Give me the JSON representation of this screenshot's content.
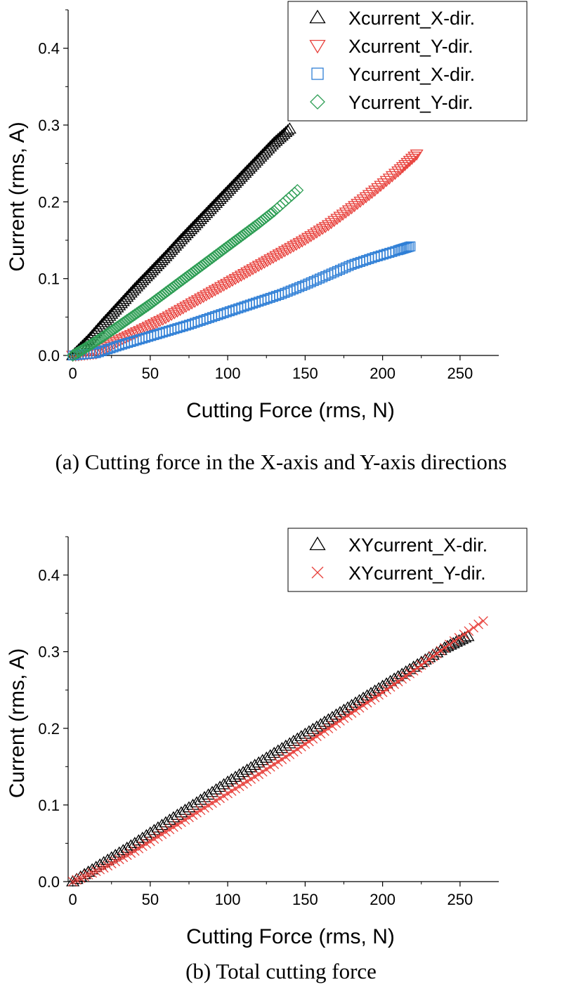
{
  "captions": {
    "a": "(a) Cutting force in the X-axis and Y-axis directions",
    "b": "(b) Total cutting force"
  },
  "chart_data": [
    {
      "id": "a",
      "type": "scatter",
      "xlabel": "Cutting Force (rms, N)",
      "ylabel": "Current (rms, A)",
      "xlim": [
        -3,
        275
      ],
      "ylim": [
        0,
        0.45
      ],
      "xticks": [
        0,
        50,
        100,
        150,
        200,
        250
      ],
      "xtick_labels": [
        "0",
        "50",
        "100",
        "150",
        "200",
        "250"
      ],
      "yticks": [
        0.0,
        0.1,
        0.2,
        0.3,
        0.4
      ],
      "ytick_labels": [
        "0.0",
        "0.1",
        "0.2",
        "0.3",
        "0.4"
      ],
      "legend_position": "top-right",
      "series": [
        {
          "name": "Xcurrent_X-dir.",
          "marker": "triangle-up",
          "color": "#000000",
          "x": [
            0,
            10,
            20,
            30,
            40,
            50,
            60,
            70,
            80,
            90,
            100,
            110,
            120,
            130,
            140
          ],
          "y": [
            0.0,
            0.02,
            0.043,
            0.065,
            0.087,
            0.108,
            0.129,
            0.151,
            0.172,
            0.193,
            0.214,
            0.235,
            0.256,
            0.277,
            0.295
          ]
        },
        {
          "name": "Xcurrent_Y-dir.",
          "marker": "triangle-down",
          "color": "#e8413c",
          "x": [
            0,
            15,
            30,
            45,
            60,
            75,
            90,
            105,
            120,
            135,
            150,
            165,
            180,
            195,
            210,
            222
          ],
          "y": [
            0.0,
            0.003,
            0.02,
            0.034,
            0.049,
            0.066,
            0.083,
            0.1,
            0.117,
            0.134,
            0.151,
            0.17,
            0.192,
            0.215,
            0.24,
            0.262
          ]
        },
        {
          "name": "Ycurrent_X-dir.",
          "marker": "square",
          "color": "#2f7fd6",
          "x": [
            0,
            15,
            30,
            45,
            60,
            75,
            90,
            105,
            120,
            135,
            150,
            165,
            180,
            195,
            210,
            218
          ],
          "y": [
            0.0,
            0.003,
            0.013,
            0.022,
            0.031,
            0.04,
            0.05,
            0.06,
            0.07,
            0.08,
            0.092,
            0.105,
            0.118,
            0.128,
            0.137,
            0.142
          ]
        },
        {
          "name": "Ycurrent_Y-dir.",
          "marker": "diamond",
          "color": "#2e9e55",
          "x": [
            0,
            10,
            20,
            30,
            40,
            50,
            60,
            70,
            80,
            90,
            100,
            110,
            120,
            130,
            145
          ],
          "y": [
            0.0,
            0.012,
            0.025,
            0.039,
            0.053,
            0.067,
            0.082,
            0.097,
            0.112,
            0.127,
            0.142,
            0.157,
            0.172,
            0.188,
            0.215
          ]
        }
      ]
    },
    {
      "id": "b",
      "type": "scatter",
      "xlabel": "Cutting Force (rms, N)",
      "ylabel": "Current (rms, A)",
      "xlim": [
        -3,
        275
      ],
      "ylim": [
        0,
        0.45
      ],
      "xticks": [
        0,
        50,
        100,
        150,
        200,
        250
      ],
      "xtick_labels": [
        "0",
        "50",
        "100",
        "150",
        "200",
        "250"
      ],
      "yticks": [
        0.0,
        0.1,
        0.2,
        0.3,
        0.4
      ],
      "ytick_labels": [
        "0.0",
        "0.1",
        "0.2",
        "0.3",
        "0.4"
      ],
      "legend_position": "top-right",
      "series": [
        {
          "name": "XYcurrent_X-dir.",
          "marker": "triangle-up",
          "color": "#000000",
          "x": [
            0,
            20,
            40,
            60,
            80,
            100,
            120,
            140,
            160,
            180,
            200,
            220,
            240,
            255
          ],
          "y": [
            0.0,
            0.025,
            0.05,
            0.077,
            0.103,
            0.13,
            0.155,
            0.18,
            0.205,
            0.23,
            0.255,
            0.28,
            0.305,
            0.32
          ]
        },
        {
          "name": "XYcurrent_Y-dir.",
          "marker": "x",
          "color": "#e8413c",
          "x": [
            0,
            20,
            40,
            60,
            80,
            100,
            120,
            140,
            160,
            180,
            200,
            220,
            240,
            265
          ],
          "y": [
            0.0,
            0.018,
            0.04,
            0.065,
            0.09,
            0.115,
            0.14,
            0.166,
            0.193,
            0.22,
            0.247,
            0.275,
            0.305,
            0.34
          ]
        }
      ]
    }
  ]
}
